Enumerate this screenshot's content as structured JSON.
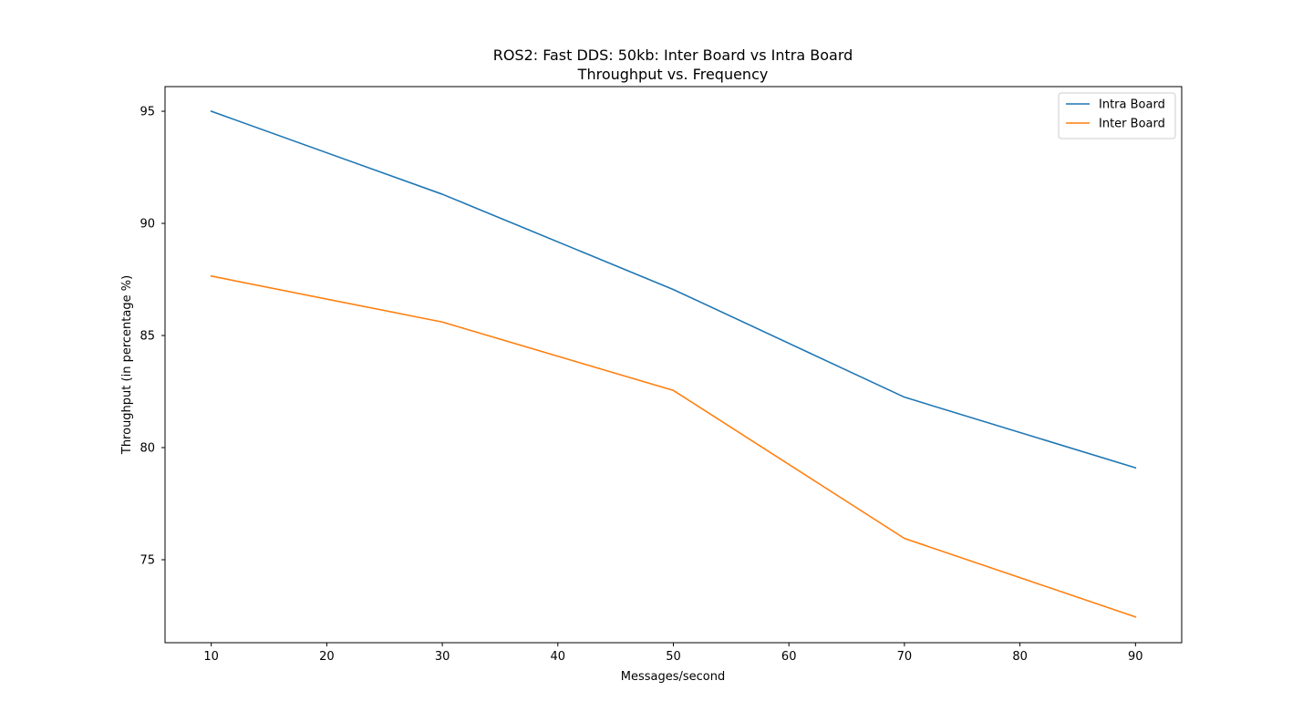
{
  "chart_data": {
    "type": "line",
    "title": "ROS2: Fast DDS: 50kb: Inter Board vs Intra Board",
    "subtitle": "Throughput vs. Frequency",
    "xlabel": "Messages/second",
    "ylabel": "Throughput (in percentage %)",
    "xlim": [
      6,
      94
    ],
    "ylim": [
      71.3,
      96.1
    ],
    "xticks": [
      10,
      20,
      30,
      40,
      50,
      60,
      70,
      80,
      90
    ],
    "yticks": [
      75,
      80,
      85,
      90,
      95
    ],
    "x": [
      10,
      30,
      50,
      70,
      90
    ],
    "series": [
      {
        "name": "Intra Board",
        "color": "#1f77b4",
        "values": [
          95.0,
          91.3,
          87.05,
          82.25,
          79.1
        ]
      },
      {
        "name": "Inter Board",
        "color": "#ff7f0e",
        "values": [
          87.65,
          85.6,
          82.55,
          75.95,
          72.45
        ]
      }
    ],
    "legend": "top-right",
    "grid": false
  }
}
